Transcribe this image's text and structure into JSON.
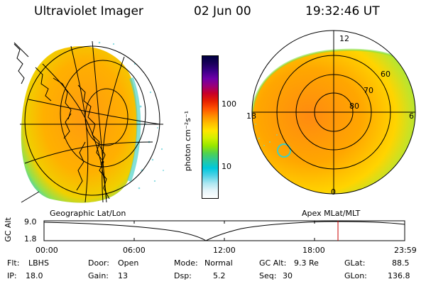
{
  "header": {
    "instrument": "Ultraviolet Imager",
    "date": "02 Jun 00",
    "time": "19:32:46 UT"
  },
  "colorbar": {
    "unit_label": "photon cm⁻²s⁻¹",
    "ticks": [
      "100",
      "10"
    ],
    "colors": [
      "#000040",
      "#1a005a",
      "#3c0088",
      "#6e00a8",
      "#9a0078",
      "#c80028",
      "#e62000",
      "#ff5000",
      "#ff8c00",
      "#ffbe00",
      "#ffe600",
      "#d2f000",
      "#96e600",
      "#50d250",
      "#28c8a0",
      "#00c8dc",
      "#50d2e6",
      "#aae6f0",
      "#e6f5fa",
      "#ffffff"
    ]
  },
  "geo_panel": {
    "label": "Geographic Lat/Lon"
  },
  "polar_panel": {
    "label": "Apex MLat/MLT",
    "mlt_labels": {
      "top": "12",
      "left": "18",
      "right": "6",
      "bottom": "0"
    },
    "lat_labels": [
      "60",
      "70",
      "80"
    ]
  },
  "timeline": {
    "ylabel": "GC Alt",
    "yticks": [
      "9.0",
      "1.8"
    ],
    "xticks": [
      "00:00",
      "06:00",
      "12:00",
      "18:00",
      "23:59"
    ],
    "current_time_fraction": 0.815,
    "marker_color": "#cc0000"
  },
  "status": {
    "flt_label": "Flt:",
    "flt_value": "LBHS",
    "ip_label": "IP:",
    "ip_value": "18.0",
    "door_label": "Door:",
    "door_value": "Open",
    "gain_label": "Gain:",
    "gain_value": "13",
    "mode_label": "Mode:",
    "mode_value": "Normal",
    "dsp_label": "Dsp:",
    "dsp_value": "5.2",
    "gcalt_label": "GC Alt:",
    "gcalt_value": "9.3 Re",
    "seq_label": "Seq:",
    "seq_value": "30",
    "glat_label": "GLat:",
    "glat_value": "88.5",
    "glon_label": "GLon:",
    "glon_value": "136.8"
  }
}
